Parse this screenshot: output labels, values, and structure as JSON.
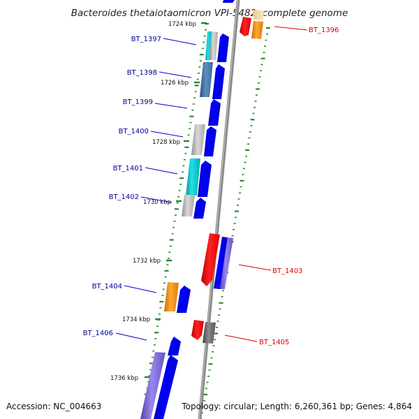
{
  "title": "Bacteroides thetaiotaomicron VPI-5482, complete genome",
  "footer": {
    "accession": "Accession: NC_004663",
    "summary": "Topology: circular; Length: 6,260,361 bp; Genes: 4,864"
  },
  "colors": {
    "backbone": "#888888",
    "tick": "#2a8a2a",
    "forward_gene": "#0000ee",
    "reverse_label": "#dd0000",
    "left_label": "#000099",
    "cyan": "#00c8cc",
    "steel_blue": "#4477aa",
    "light_gray": "#b0b0b0",
    "orange": "#ff8800",
    "purple": "#7766cc",
    "red": "#ee0000",
    "dark_gray": "#666666",
    "peach": "#ffd9a8"
  },
  "kbp_markers": [
    "1724 kbp",
    "1726 kbp",
    "1728 kbp",
    "1730 kbp",
    "1732 kbp",
    "1734 kbp",
    "1736 kbp"
  ],
  "genes_left": [
    {
      "label": "BT_1397"
    },
    {
      "label": "BT_1398"
    },
    {
      "label": "BT_1399"
    },
    {
      "label": "BT_1400"
    },
    {
      "label": "BT_1401"
    },
    {
      "label": "BT_1402"
    },
    {
      "label": "BT_1404"
    },
    {
      "label": "BT_1406"
    }
  ],
  "genes_right": [
    {
      "label": "BT_1396"
    },
    {
      "label": "BT_1403"
    },
    {
      "label": "BT_1405"
    }
  ]
}
